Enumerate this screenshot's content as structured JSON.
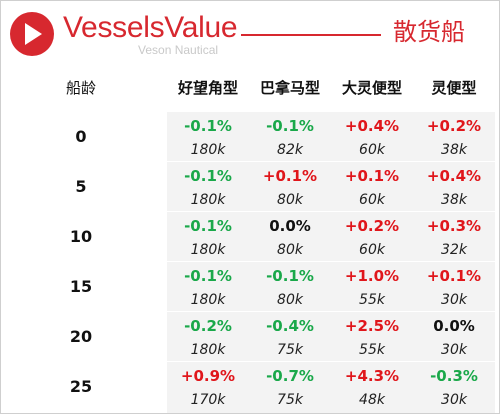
{
  "header": {
    "brand_name": "VesselsValue",
    "brand_sub": "Veson Nautical",
    "title": "散货船"
  },
  "colors": {
    "brand_red": "#d7282f",
    "positive": "#e0161b",
    "negative": "#1aa84a",
    "neutral": "#111111"
  },
  "table": {
    "age_header": "船龄",
    "columns": [
      "好望角型",
      "巴拿马型",
      "大灵便型",
      "灵便型"
    ],
    "rows": [
      {
        "age": "0",
        "cells": [
          {
            "pct": "-0.1%",
            "val": "180k"
          },
          {
            "pct": "-0.1%",
            "val": "82k"
          },
          {
            "pct": "+0.4%",
            "val": "60k"
          },
          {
            "pct": "+0.2%",
            "val": "38k"
          }
        ]
      },
      {
        "age": "5",
        "cells": [
          {
            "pct": "-0.1%",
            "val": "180k"
          },
          {
            "pct": "+0.1%",
            "val": "80k"
          },
          {
            "pct": "+0.1%",
            "val": "60k"
          },
          {
            "pct": "+0.4%",
            "val": "38k"
          }
        ]
      },
      {
        "age": "10",
        "cells": [
          {
            "pct": "-0.1%",
            "val": "180k"
          },
          {
            "pct": "0.0%",
            "val": "80k"
          },
          {
            "pct": "+0.2%",
            "val": "60k"
          },
          {
            "pct": "+0.3%",
            "val": "32k"
          }
        ]
      },
      {
        "age": "15",
        "cells": [
          {
            "pct": "-0.1%",
            "val": "180k"
          },
          {
            "pct": "-0.1%",
            "val": "80k"
          },
          {
            "pct": "+1.0%",
            "val": "55k"
          },
          {
            "pct": "+0.1%",
            "val": "30k"
          }
        ]
      },
      {
        "age": "20",
        "cells": [
          {
            "pct": "-0.2%",
            "val": "180k"
          },
          {
            "pct": "-0.4%",
            "val": "75k"
          },
          {
            "pct": "+2.5%",
            "val": "55k"
          },
          {
            "pct": "0.0%",
            "val": "30k"
          }
        ]
      },
      {
        "age": "25",
        "cells": [
          {
            "pct": "+0.9%",
            "val": "170k"
          },
          {
            "pct": "-0.7%",
            "val": "75k"
          },
          {
            "pct": "+4.3%",
            "val": "48k"
          },
          {
            "pct": "-0.3%",
            "val": "30k"
          }
        ]
      }
    ]
  }
}
